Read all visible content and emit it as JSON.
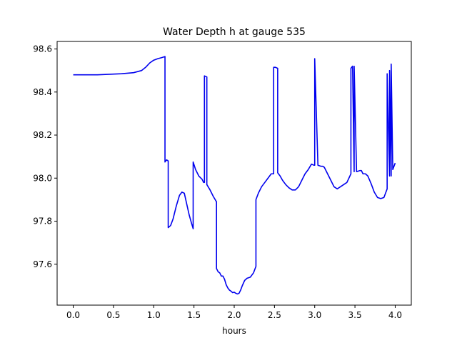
{
  "chart_data": {
    "type": "line",
    "title": "Water Depth h at gauge 535",
    "xlabel": "hours",
    "ylabel": "",
    "xlim": [
      -0.2,
      4.2
    ],
    "ylim": [
      97.41,
      98.635
    ],
    "xticks": [
      0.0,
      0.5,
      1.0,
      1.5,
      2.0,
      2.5,
      3.0,
      3.5,
      4.0
    ],
    "xtick_labels": [
      "0.0",
      "0.5",
      "1.0",
      "1.5",
      "2.0",
      "2.5",
      "3.0",
      "3.5",
      "4.0"
    ],
    "yticks": [
      97.6,
      97.8,
      98.0,
      98.2,
      98.4,
      98.6
    ],
    "ytick_labels": [
      "97.6",
      "97.8",
      "98.0",
      "98.2",
      "98.4",
      "98.6"
    ],
    "grid": false,
    "series": [
      {
        "color": "#0000ee",
        "x": [
          0.0,
          0.3,
          0.6,
          0.75,
          0.85,
          0.9,
          0.95,
          1.0,
          1.05,
          1.1,
          1.14,
          1.14,
          1.16,
          1.18,
          1.18,
          1.21,
          1.24,
          1.28,
          1.32,
          1.35,
          1.38,
          1.41,
          1.44,
          1.47,
          1.49,
          1.49,
          1.52,
          1.56,
          1.6,
          1.62,
          1.63,
          1.63,
          1.66,
          1.66,
          1.7,
          1.74,
          1.78,
          1.78,
          1.8,
          1.82,
          1.84,
          1.86,
          1.88,
          1.9,
          1.92,
          1.94,
          1.96,
          1.98,
          2.0,
          2.02,
          2.04,
          2.06,
          2.08,
          2.1,
          2.13,
          2.16,
          2.2,
          2.24,
          2.27,
          2.27,
          2.3,
          2.34,
          2.38,
          2.42,
          2.46,
          2.49,
          2.49,
          2.51,
          2.54,
          2.54,
          2.57,
          2.6,
          2.64,
          2.68,
          2.72,
          2.76,
          2.8,
          2.84,
          2.88,
          2.92,
          2.96,
          2.99,
          2.99,
          3.0,
          3.0,
          3.04,
          3.08,
          3.1,
          3.12,
          3.16,
          3.2,
          3.24,
          3.28,
          3.32,
          3.36,
          3.4,
          3.45,
          3.45,
          3.47,
          3.49,
          3.49,
          3.52,
          3.56,
          3.58,
          3.6,
          3.63,
          3.66,
          3.7,
          3.74,
          3.78,
          3.82,
          3.86,
          3.9,
          3.9,
          3.93,
          3.93,
          3.95,
          3.95,
          3.97,
          3.97,
          4.0
        ],
        "y": [
          98.48,
          98.48,
          98.485,
          98.49,
          98.5,
          98.515,
          98.535,
          98.548,
          98.555,
          98.56,
          98.565,
          98.075,
          98.085,
          98.08,
          97.77,
          97.78,
          97.81,
          97.87,
          97.92,
          97.935,
          97.93,
          97.88,
          97.83,
          97.79,
          97.765,
          98.075,
          98.04,
          98.01,
          97.995,
          97.98,
          97.98,
          98.475,
          98.47,
          97.97,
          97.945,
          97.915,
          97.89,
          97.58,
          97.565,
          97.56,
          97.545,
          97.545,
          97.53,
          97.505,
          97.49,
          97.48,
          97.475,
          97.468,
          97.47,
          97.465,
          97.462,
          97.465,
          97.48,
          97.5,
          97.525,
          97.535,
          97.54,
          97.56,
          97.59,
          97.9,
          97.93,
          97.96,
          97.98,
          98.0,
          98.02,
          98.02,
          98.515,
          98.515,
          98.51,
          98.025,
          98.01,
          97.99,
          97.97,
          97.955,
          97.945,
          97.945,
          97.96,
          97.99,
          98.02,
          98.04,
          98.065,
          98.06,
          98.06,
          98.06,
          98.555,
          98.06,
          98.055,
          98.055,
          98.05,
          98.02,
          97.99,
          97.96,
          97.95,
          97.96,
          97.97,
          97.98,
          98.02,
          98.51,
          98.52,
          98.03,
          98.52,
          98.03,
          98.035,
          98.035,
          98.02,
          98.02,
          98.01,
          97.975,
          97.935,
          97.91,
          97.905,
          97.91,
          97.95,
          98.485,
          98.01,
          98.5,
          98.01,
          98.53,
          98.04,
          98.04,
          98.07
        ]
      }
    ]
  }
}
